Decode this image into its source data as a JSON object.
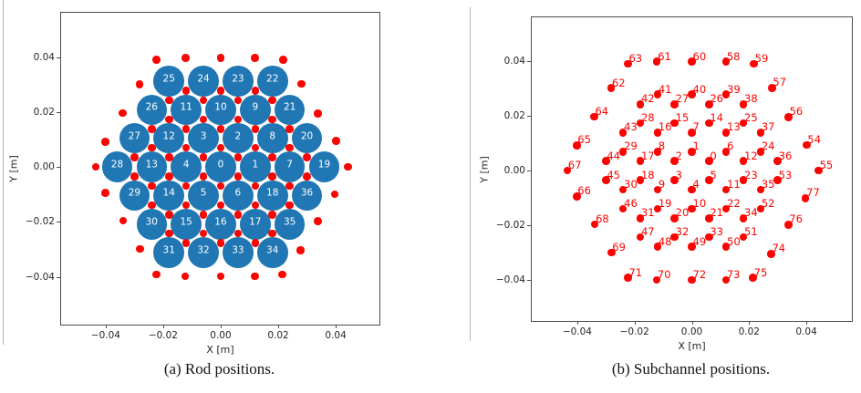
{
  "figure": {
    "caption_a": "(a) Rod positions.",
    "caption_b": "(b) Subchannel positions."
  },
  "colors": {
    "rod_fill": "#2077b4",
    "rod_label": "#ffffff",
    "subchannel": "#f90400",
    "axis": "#4c4c4c",
    "text": "#262626"
  },
  "chart_data": {
    "shared_points": {
      "rod_positions": [
        [
          0,
          0.0,
          0.0
        ],
        [
          1,
          0.012,
          0.0
        ],
        [
          2,
          0.006,
          0.0104
        ],
        [
          3,
          -0.006,
          0.0104
        ],
        [
          4,
          -0.012,
          0.0
        ],
        [
          5,
          -0.006,
          -0.0104
        ],
        [
          6,
          0.006,
          -0.0104
        ],
        [
          7,
          0.024,
          0.0
        ],
        [
          8,
          0.018,
          0.0104
        ],
        [
          9,
          0.012,
          0.0208
        ],
        [
          10,
          0.0,
          0.0208
        ],
        [
          11,
          -0.012,
          0.0208
        ],
        [
          12,
          -0.018,
          0.0104
        ],
        [
          13,
          -0.024,
          0.0
        ],
        [
          14,
          -0.018,
          -0.0104
        ],
        [
          15,
          -0.012,
          -0.0208
        ],
        [
          16,
          0.0,
          -0.0208
        ],
        [
          17,
          0.012,
          -0.0208
        ],
        [
          18,
          0.018,
          -0.0104
        ],
        [
          19,
          0.036,
          0.0
        ],
        [
          20,
          0.03,
          0.0104
        ],
        [
          21,
          0.024,
          0.0208
        ],
        [
          22,
          0.018,
          0.0312
        ],
        [
          23,
          0.006,
          0.0312
        ],
        [
          24,
          -0.006,
          0.0312
        ],
        [
          25,
          -0.018,
          0.0312
        ],
        [
          26,
          -0.024,
          0.0208
        ],
        [
          27,
          -0.03,
          0.0104
        ],
        [
          28,
          -0.036,
          0.0
        ],
        [
          29,
          -0.03,
          -0.0104
        ],
        [
          30,
          -0.024,
          -0.0208
        ],
        [
          31,
          -0.018,
          -0.0312
        ],
        [
          32,
          -0.006,
          -0.0312
        ],
        [
          33,
          0.006,
          -0.0312
        ],
        [
          34,
          0.018,
          -0.0312
        ],
        [
          35,
          0.024,
          -0.0208
        ],
        [
          36,
          0.03,
          -0.0104
        ]
      ],
      "subchannel_positions": [
        [
          0,
          0.006,
          0.00346
        ],
        [
          1,
          0.0,
          0.00693
        ],
        [
          2,
          -0.006,
          0.00346
        ],
        [
          3,
          -0.006,
          -0.00346
        ],
        [
          4,
          0.0,
          -0.00693
        ],
        [
          5,
          0.006,
          -0.00346
        ],
        [
          6,
          0.012,
          0.00693
        ],
        [
          7,
          0.0,
          0.01386
        ],
        [
          8,
          -0.012,
          0.00693
        ],
        [
          9,
          -0.012,
          -0.00693
        ],
        [
          10,
          0.0,
          -0.01386
        ],
        [
          11,
          0.012,
          -0.00693
        ],
        [
          12,
          0.018,
          0.00346
        ],
        [
          13,
          0.012,
          0.01386
        ],
        [
          14,
          0.006,
          0.01732
        ],
        [
          15,
          -0.006,
          0.01732
        ],
        [
          16,
          -0.012,
          0.01386
        ],
        [
          17,
          -0.018,
          0.00346
        ],
        [
          18,
          -0.018,
          -0.00346
        ],
        [
          19,
          -0.012,
          -0.01386
        ],
        [
          20,
          -0.006,
          -0.01732
        ],
        [
          21,
          0.006,
          -0.01732
        ],
        [
          22,
          0.012,
          -0.01386
        ],
        [
          23,
          0.018,
          -0.00346
        ],
        [
          24,
          0.024,
          0.00693
        ],
        [
          25,
          0.018,
          0.01732
        ],
        [
          26,
          0.006,
          0.02425
        ],
        [
          27,
          -0.006,
          0.02425
        ],
        [
          28,
          -0.018,
          0.01732
        ],
        [
          29,
          -0.024,
          0.00693
        ],
        [
          30,
          -0.024,
          -0.00693
        ],
        [
          31,
          -0.018,
          -0.01732
        ],
        [
          32,
          -0.006,
          -0.02425
        ],
        [
          33,
          0.006,
          -0.02425
        ],
        [
          34,
          0.018,
          -0.01732
        ],
        [
          35,
          0.024,
          -0.00693
        ],
        [
          36,
          0.03,
          0.00346
        ],
        [
          37,
          0.024,
          0.01386
        ],
        [
          38,
          0.018,
          0.02425
        ],
        [
          39,
          0.012,
          0.02771
        ],
        [
          40,
          0.0,
          0.02771
        ],
        [
          41,
          -0.012,
          0.02771
        ],
        [
          42,
          -0.018,
          0.02425
        ],
        [
          43,
          -0.024,
          0.01386
        ],
        [
          44,
          -0.03,
          0.00346
        ],
        [
          45,
          -0.03,
          -0.00346
        ],
        [
          46,
          -0.024,
          -0.01386
        ],
        [
          47,
          -0.018,
          -0.02425
        ],
        [
          48,
          -0.012,
          -0.02771
        ],
        [
          49,
          0.0,
          -0.02771
        ],
        [
          50,
          0.012,
          -0.02771
        ],
        [
          51,
          0.018,
          -0.02425
        ],
        [
          52,
          0.024,
          -0.01386
        ],
        [
          53,
          0.03,
          -0.00346
        ],
        [
          54,
          0.0401,
          0.0094
        ],
        [
          55,
          0.0443,
          0.0
        ],
        [
          56,
          0.0338,
          0.0195
        ],
        [
          57,
          0.028,
          0.0302
        ],
        [
          58,
          0.0119,
          0.0397
        ],
        [
          59,
          0.0217,
          0.039
        ],
        [
          60,
          0.0,
          0.0397
        ],
        [
          61,
          -0.0122,
          0.0397
        ],
        [
          62,
          -0.0282,
          0.0301
        ],
        [
          63,
          -0.0223,
          0.039
        ],
        [
          64,
          -0.0341,
          0.0196
        ],
        [
          65,
          -0.0402,
          0.0092
        ],
        [
          66,
          -0.0402,
          -0.0094
        ],
        [
          67,
          -0.0435,
          0.0
        ],
        [
          68,
          -0.0339,
          -0.0196
        ],
        [
          69,
          -0.0281,
          -0.0299
        ],
        [
          70,
          -0.0123,
          -0.0398
        ],
        [
          71,
          -0.0223,
          -0.0391
        ],
        [
          72,
          0.0,
          -0.0398
        ],
        [
          73,
          0.0119,
          -0.0398
        ],
        [
          74,
          0.0277,
          -0.0303
        ],
        [
          75,
          0.0214,
          -0.0391
        ],
        [
          76,
          0.0337,
          -0.0197
        ],
        [
          77,
          0.0397,
          -0.01
        ]
      ]
    },
    "figures": [
      {
        "name": "rod-positions",
        "type": "scatter",
        "xlabel": "X [m]",
        "ylabel": "Y [m]",
        "xlim": [
          -0.0555,
          0.0552
        ],
        "ylim": [
          -0.0574,
          0.0561
        ],
        "grid": false,
        "xticks": {
          "values": [
            -0.04,
            -0.02,
            0.0,
            0.02,
            0.04
          ],
          "labels": [
            "−0.04",
            "−0.02",
            "0.00",
            "0.02",
            "0.04"
          ]
        },
        "yticks": {
          "values": [
            0.04,
            0.02,
            0.0,
            -0.02,
            -0.04
          ],
          "labels": [
            "0.04",
            "0.02",
            "0.00",
            "−0.02",
            "−0.04"
          ]
        },
        "series": [
          {
            "name": "rods",
            "points_ref": "rod_positions",
            "marker_shape": "circle",
            "marker_radius_px": 16.8,
            "color": "#2077b4",
            "label_mode": "inside",
            "label_color": "#ffffff"
          },
          {
            "name": "subchannel-centers",
            "points_ref": "subchannel_positions",
            "marker_shape": "dot",
            "marker_radius_px": 4.3,
            "color": "#f90400",
            "label_mode": "none"
          }
        ]
      },
      {
        "name": "subchannel-positions",
        "type": "scatter",
        "xlabel": "X [m]",
        "ylabel": "Y [m]",
        "xlim": [
          -0.0559,
          0.0559
        ],
        "ylim": [
          -0.0548,
          0.0559
        ],
        "grid": false,
        "xticks": {
          "values": [
            -0.04,
            -0.02,
            0.0,
            0.02,
            0.04
          ],
          "labels": [
            "−0.04",
            "−0.02",
            "0.00",
            "0.02",
            "0.04"
          ]
        },
        "yticks": {
          "values": [
            0.04,
            0.02,
            0.0,
            -0.02,
            -0.04
          ],
          "labels": [
            "0.04",
            "0.02",
            "0.00",
            "−0.02",
            "−0.04"
          ]
        },
        "series": [
          {
            "name": "subchannel-centers",
            "points_ref": "subchannel_positions",
            "marker_shape": "dot",
            "marker_radius_px": 4.3,
            "color": "#f90400",
            "label_mode": "offset",
            "label_color": "#f90400"
          }
        ]
      }
    ]
  }
}
